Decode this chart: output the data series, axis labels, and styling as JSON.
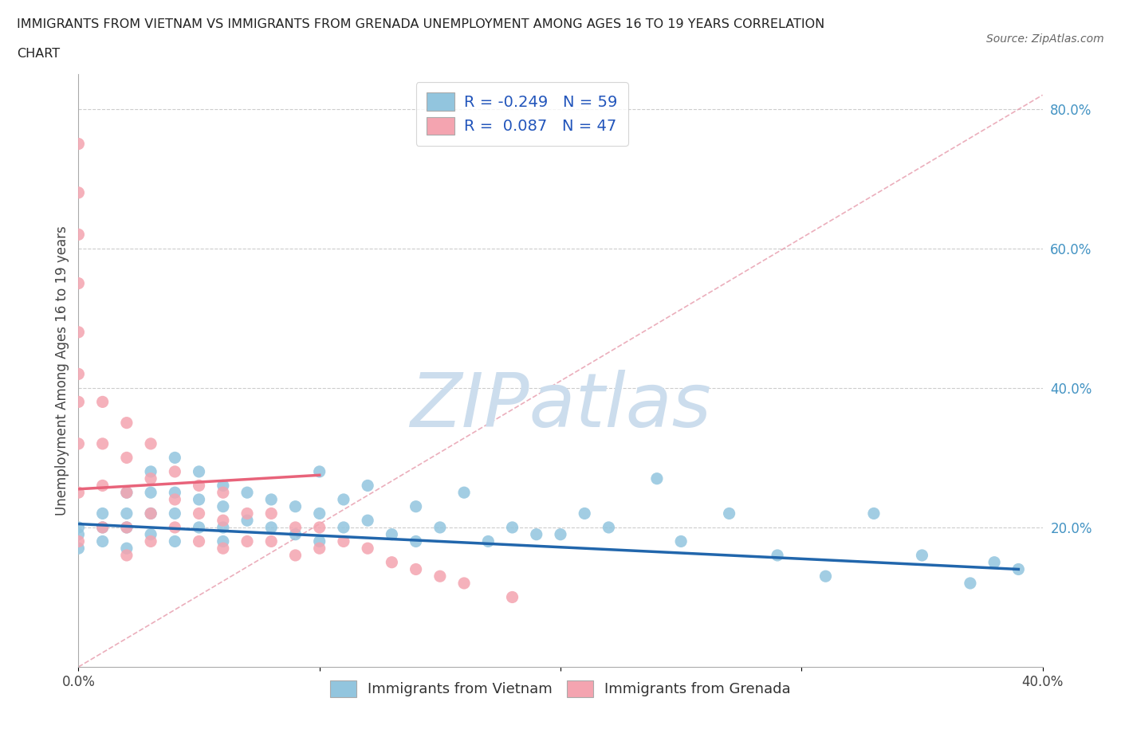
{
  "title_line1": "IMMIGRANTS FROM VIETNAM VS IMMIGRANTS FROM GRENADA UNEMPLOYMENT AMONG AGES 16 TO 19 YEARS CORRELATION",
  "title_line2": "CHART",
  "source_text": "Source: ZipAtlas.com",
  "ylabel": "Unemployment Among Ages 16 to 19 years",
  "xlim": [
    0.0,
    0.4
  ],
  "ylim": [
    0.0,
    0.85
  ],
  "xticks": [
    0.0,
    0.1,
    0.2,
    0.3,
    0.4
  ],
  "xtick_labels": [
    "0.0%",
    "",
    "",
    "",
    "40.0%"
  ],
  "yticks_right": [
    0.2,
    0.4,
    0.6,
    0.8
  ],
  "ytick_labels_right": [
    "20.0%",
    "40.0%",
    "60.0%",
    "80.0%"
  ],
  "vietnam_color": "#92c5de",
  "grenada_color": "#f4a4b0",
  "vietnam_line_color": "#2166ac",
  "grenada_line_color": "#e8637a",
  "diagonal_color": "#e8a0b0",
  "watermark_text": "ZIPatlas",
  "watermark_color": "#ccdded",
  "R_vietnam": -0.249,
  "N_vietnam": 59,
  "R_grenada": 0.087,
  "N_grenada": 47,
  "legend_label_vietnam": "Immigrants from Vietnam",
  "legend_label_grenada": "Immigrants from Grenada",
  "vietnam_x": [
    0.0,
    0.0,
    0.0,
    0.01,
    0.01,
    0.01,
    0.02,
    0.02,
    0.02,
    0.02,
    0.03,
    0.03,
    0.03,
    0.03,
    0.04,
    0.04,
    0.04,
    0.04,
    0.05,
    0.05,
    0.05,
    0.06,
    0.06,
    0.06,
    0.06,
    0.07,
    0.07,
    0.08,
    0.08,
    0.09,
    0.09,
    0.1,
    0.1,
    0.1,
    0.11,
    0.11,
    0.12,
    0.12,
    0.13,
    0.14,
    0.14,
    0.15,
    0.16,
    0.17,
    0.18,
    0.19,
    0.2,
    0.21,
    0.22,
    0.24,
    0.25,
    0.27,
    0.29,
    0.31,
    0.33,
    0.35,
    0.37,
    0.38,
    0.39
  ],
  "vietnam_y": [
    0.2,
    0.19,
    0.17,
    0.22,
    0.2,
    0.18,
    0.25,
    0.22,
    0.2,
    0.17,
    0.28,
    0.25,
    0.22,
    0.19,
    0.3,
    0.25,
    0.22,
    0.18,
    0.28,
    0.24,
    0.2,
    0.26,
    0.23,
    0.2,
    0.18,
    0.25,
    0.21,
    0.24,
    0.2,
    0.23,
    0.19,
    0.28,
    0.22,
    0.18,
    0.24,
    0.2,
    0.26,
    0.21,
    0.19,
    0.23,
    0.18,
    0.2,
    0.25,
    0.18,
    0.2,
    0.19,
    0.19,
    0.22,
    0.2,
    0.27,
    0.18,
    0.22,
    0.16,
    0.13,
    0.22,
    0.16,
    0.12,
    0.15,
    0.14
  ],
  "grenada_x": [
    0.0,
    0.0,
    0.0,
    0.0,
    0.0,
    0.0,
    0.0,
    0.0,
    0.0,
    0.0,
    0.01,
    0.01,
    0.01,
    0.01,
    0.02,
    0.02,
    0.02,
    0.02,
    0.02,
    0.03,
    0.03,
    0.03,
    0.03,
    0.04,
    0.04,
    0.04,
    0.05,
    0.05,
    0.05,
    0.06,
    0.06,
    0.06,
    0.07,
    0.07,
    0.08,
    0.08,
    0.09,
    0.09,
    0.1,
    0.1,
    0.11,
    0.12,
    0.13,
    0.14,
    0.15,
    0.16,
    0.18
  ],
  "grenada_y": [
    0.75,
    0.68,
    0.62,
    0.55,
    0.48,
    0.42,
    0.38,
    0.32,
    0.25,
    0.18,
    0.38,
    0.32,
    0.26,
    0.2,
    0.35,
    0.3,
    0.25,
    0.2,
    0.16,
    0.32,
    0.27,
    0.22,
    0.18,
    0.28,
    0.24,
    0.2,
    0.26,
    0.22,
    0.18,
    0.25,
    0.21,
    0.17,
    0.22,
    0.18,
    0.22,
    0.18,
    0.2,
    0.16,
    0.2,
    0.17,
    0.18,
    0.17,
    0.15,
    0.14,
    0.13,
    0.12,
    0.1
  ]
}
